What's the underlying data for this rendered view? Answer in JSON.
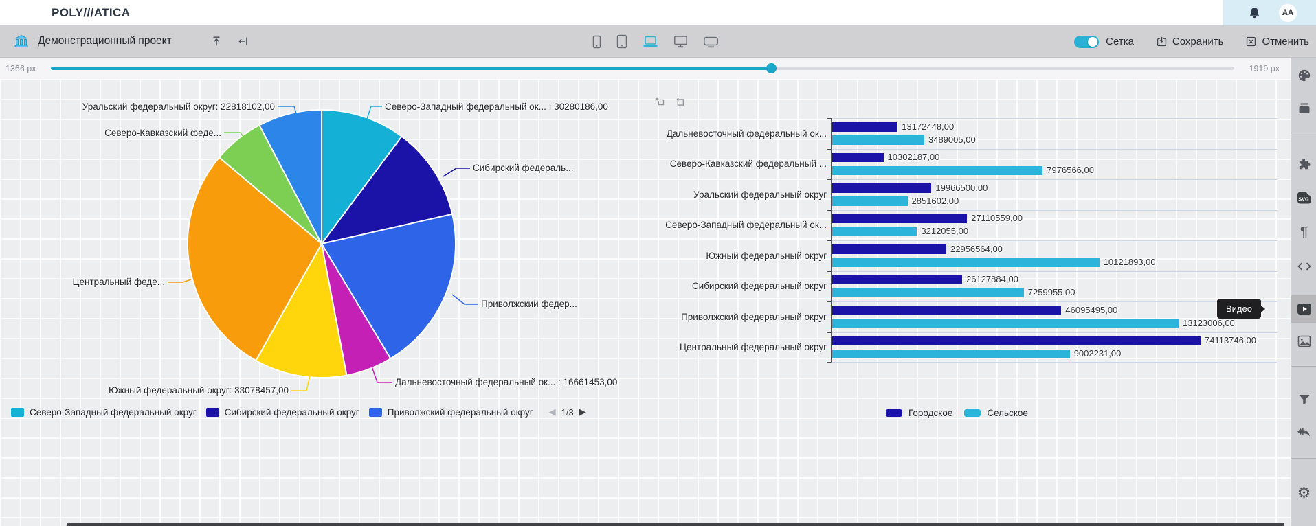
{
  "topbar": {
    "logo": "POLY///ATICA",
    "avatar": "AA"
  },
  "toolbar": {
    "project_title": "Демонстрационный проект",
    "grid_toggle_label": "Сетка",
    "grid_toggle_on": true,
    "save_label": "Сохранить",
    "cancel_label": "Отменить",
    "device_icons": [
      "phone",
      "tablet",
      "laptop",
      "monitor",
      "tv"
    ],
    "active_device": "laptop",
    "accent_color": "#29b2d5"
  },
  "width_slider": {
    "min_label": "1366 px",
    "max_label": "1919 px",
    "accent_color": "#1aa7c9"
  },
  "pie": {
    "slices": [
      {
        "name": "Северо-Западный федеральный округ",
        "value": 30280186,
        "color": "#14b0d6"
      },
      {
        "name": "Сибирский федеральный округ",
        "value": 33387839,
        "color": "#1b12a7"
      },
      {
        "name": "Приволжский федеральный округ",
        "value": 59218501,
        "color": "#2d64e8"
      },
      {
        "name": "Дальневосточный федеральный округ",
        "value": 16661453,
        "color": "#c520b6"
      },
      {
        "name": "Южный федеральный округ",
        "value": 33078457,
        "color": "#ffd60b"
      },
      {
        "name": "Центральный федеральный округ",
        "value": 83115977,
        "color": "#f99c0c"
      },
      {
        "name": "Северо-Кавказский федеральный округ",
        "value": 18278753,
        "color": "#7ccf52"
      },
      {
        "name": "Уральский федеральный округ",
        "value": 22818102,
        "color": "#2c85e8"
      }
    ],
    "callouts": [
      {
        "slice": 7,
        "text": "Уральский федеральный округ: 22818102,00"
      },
      {
        "slice": 0,
        "text": "Северо-Западный федеральный ок... : 30280186,00"
      },
      {
        "slice": 6,
        "text": "Северо-Кавказский феде..."
      },
      {
        "slice": 1,
        "text": "Сибирский федераль..."
      },
      {
        "slice": 5,
        "text": "Центральный феде..."
      },
      {
        "slice": 2,
        "text": "Приволжский федер..."
      },
      {
        "slice": 4,
        "text": "Южный федеральный округ: 33078457,00"
      },
      {
        "slice": 3,
        "text": "Дальневосточный федеральный ок... : 16661453,00"
      }
    ],
    "legend_slice_indices": [
      0,
      1,
      2
    ],
    "legend_page": "1/3",
    "pagination_prev": "◀",
    "pagination_next": "▶"
  },
  "bars": {
    "categories": [
      "Дальневосточный федеральный ок...",
      "Северо-Кавказский федеральный ...",
      "Уральский федеральный округ",
      "Северо-Западный федеральный ок...",
      "Южный федеральный округ",
      "Сибирский федеральный округ",
      "Приволжский федеральный округ",
      "Центральный федеральный округ"
    ],
    "series": [
      {
        "name": "Городское",
        "color": "#1b12a7",
        "values": [
          13172448,
          10302187,
          19966500,
          27110559,
          22956564,
          26127884,
          46095495,
          74113746
        ]
      },
      {
        "name": "Сельское",
        "color": "#2cb4da",
        "values": [
          3489005,
          7976566,
          2851602,
          3212055,
          10121893,
          7259955,
          13123006,
          9002231
        ]
      }
    ],
    "decimal_suffix": ",00"
  },
  "sidebar": {
    "tooltip": "Видео",
    "svg_badge": "SVG",
    "icons": [
      "palette",
      "layers",
      "puzzle",
      "svg",
      "pilcrow",
      "code",
      "video",
      "image",
      "filter",
      "undo",
      "settings"
    ],
    "active_icon": "video"
  },
  "chart_data": [
    {
      "type": "pie",
      "categories": [
        "Северо-Западный федеральный округ",
        "Сибирский федеральный округ",
        "Приволжский федеральный округ",
        "Дальневосточный федеральный округ",
        "Южный федеральный округ",
        "Центральный федеральный округ",
        "Северо-Кавказский федеральный округ",
        "Уральский федеральный округ"
      ],
      "values": [
        30280186,
        33387839,
        59218501,
        16661453,
        33078457,
        83115977,
        18278753,
        22818102
      ],
      "title": "",
      "legend_position": "bottom"
    },
    {
      "type": "bar",
      "orientation": "horizontal",
      "categories": [
        "Дальневосточный федеральный округ",
        "Северо-Кавказский федеральный округ",
        "Уральский федеральный округ",
        "Северо-Западный федеральный округ",
        "Южный федеральный округ",
        "Сибирский федеральный округ",
        "Приволжский федеральный округ",
        "Центральный федеральный округ"
      ],
      "series": [
        {
          "name": "Городское",
          "values": [
            13172448,
            10302187,
            19966500,
            27110559,
            22956564,
            26127884,
            46095495,
            74113746
          ]
        },
        {
          "name": "Сельское",
          "values": [
            3489005,
            7976566,
            2851602,
            3212055,
            10121893,
            7259955,
            13123006,
            9002231
          ]
        }
      ],
      "title": "",
      "legend_position": "bottom",
      "note": "each series scaled to its own maximum"
    }
  ]
}
